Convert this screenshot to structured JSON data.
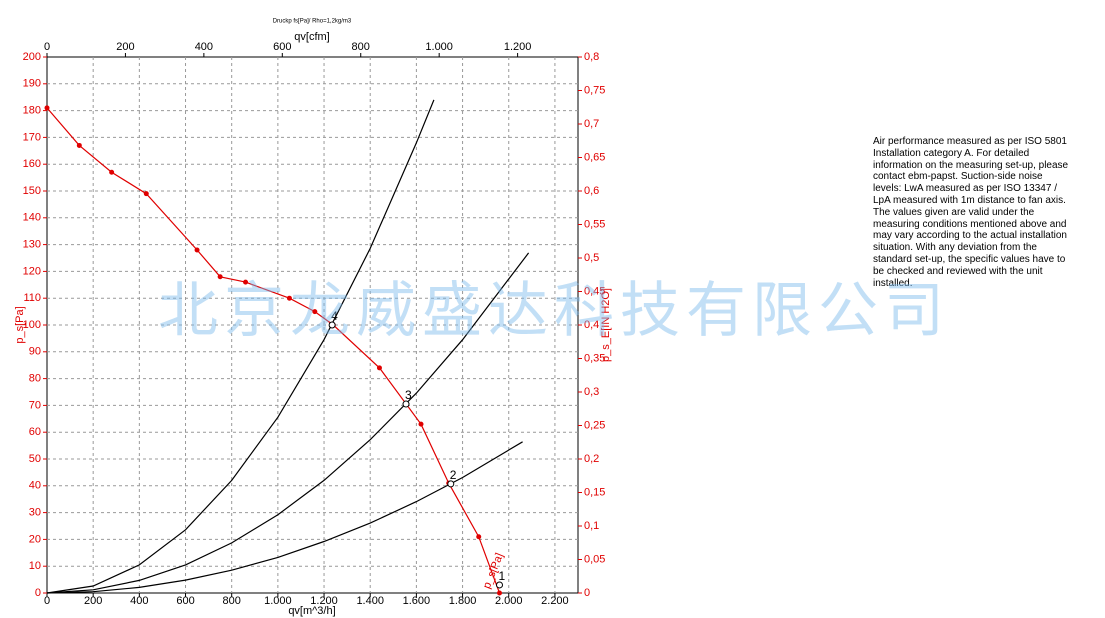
{
  "chart_data": {
    "type": "line",
    "title": "Druckp fs[Pa]/ Rho=1,2kg/m3",
    "x_label": "qv[m^3/h]",
    "x2_label": "qv[cfm]",
    "y_label": "p_s[Pa]",
    "y2_label": "p_s_E[IN H2O]",
    "xlim": [
      0,
      2300
    ],
    "xticks": [
      0,
      200,
      400,
      600,
      800,
      {
        "value": 1000,
        "label": "1.000"
      },
      {
        "value": 1200,
        "label": "1.200"
      },
      {
        "value": 1400,
        "label": "1.400"
      },
      {
        "value": 1600,
        "label": "1.600"
      },
      {
        "value": 1800,
        "label": "1.800"
      },
      {
        "value": 2000,
        "label": "2.000"
      },
      {
        "value": 2200,
        "label": "2.200"
      }
    ],
    "x2lim": [
      0,
      1354
    ],
    "x2ticks": [
      0,
      200,
      400,
      600,
      800,
      {
        "value": 1000,
        "label": "1.000"
      },
      {
        "value": 1200,
        "label": "1.200"
      }
    ],
    "ylim": [
      0,
      200
    ],
    "yticks": [
      0,
      10,
      20,
      30,
      40,
      50,
      60,
      70,
      80,
      90,
      100,
      110,
      120,
      130,
      140,
      150,
      160,
      170,
      180,
      190,
      200
    ],
    "y2lim": [
      0,
      0.8
    ],
    "y2ticks": [
      0,
      {
        "value": 0.05,
        "label": "0,05"
      },
      {
        "value": 0.1,
        "label": "0,1"
      },
      {
        "value": 0.15,
        "label": "0,15"
      },
      {
        "value": 0.2,
        "label": "0,2"
      },
      {
        "value": 0.25,
        "label": "0,25"
      },
      {
        "value": 0.3,
        "label": "0,3"
      },
      {
        "value": 0.35,
        "label": "0,35"
      },
      {
        "value": 0.4,
        "label": "0,4"
      },
      {
        "value": 0.45,
        "label": "0,45"
      },
      {
        "value": 0.5,
        "label": "0,5"
      },
      {
        "value": 0.55,
        "label": "0,55"
      },
      {
        "value": 0.6,
        "label": "0,6"
      },
      {
        "value": 0.65,
        "label": "0,65"
      },
      {
        "value": 0.7,
        "label": "0,7"
      },
      {
        "value": 0.75,
        "label": "0,75"
      },
      {
        "value": 0.8,
        "label": "0,8"
      }
    ],
    "grid": true,
    "series": [
      {
        "name": "p_s[Pa]",
        "color": "#e00000",
        "markers": true,
        "x": [
          0,
          140,
          280,
          430,
          650,
          750,
          860,
          1050,
          1160,
          1240,
          1440,
          1620,
          1740,
          1870,
          1960
        ],
        "values": [
          181,
          167,
          157,
          149,
          128,
          118,
          116,
          110,
          105,
          100,
          84,
          63,
          41,
          21,
          0
        ]
      },
      {
        "color": "#000000",
        "markers": false,
        "x": [
          0,
          200,
          400,
          600,
          800,
          1000,
          1200,
          1400,
          1600,
          1676
        ],
        "values": [
          0,
          2.6,
          10.5,
          23.6,
          42,
          65.6,
          94.5,
          128.6,
          168,
          184
        ]
      },
      {
        "color": "#000000",
        "markers": false,
        "x": [
          0,
          200,
          400,
          600,
          800,
          1000,
          1200,
          1400,
          1600,
          1800,
          2086
        ],
        "values": [
          0,
          1.2,
          4.7,
          10.5,
          18.7,
          29.2,
          42,
          57.2,
          74.6,
          94.5,
          126.9
        ]
      },
      {
        "color": "#000000",
        "markers": false,
        "x": [
          0,
          200,
          400,
          600,
          800,
          1000,
          1200,
          1400,
          1600,
          1800,
          2060
        ],
        "values": [
          0,
          0.5,
          2.1,
          4.8,
          8.5,
          13.3,
          19.2,
          26.1,
          34.1,
          43.1,
          56.4
        ]
      }
    ],
    "operating_points": [
      {
        "label": "1",
        "x": 1960,
        "y": 3
      },
      {
        "label": "2",
        "x": 1749,
        "y": 40.7
      },
      {
        "label": "3",
        "x": 1555,
        "y": 70.5
      },
      {
        "label": "4",
        "x": 1235,
        "y": 100
      }
    ]
  },
  "note": [
    "Air performance measured as per ISO 5801",
    "Installation category A. For detailed",
    "information on the measuring set-up, please",
    "contact ebm-papst. Suction-side noise",
    "levels: LwA measured as per ISO 13347 /",
    "LpA measured with 1m distance to fan axis.",
    "The values given are valid under the",
    "measuring conditions mentioned above and",
    "may vary according to the actual installation",
    "situation. With any deviation from the",
    "standard set-up, the specific values have to",
    "be checked and reviewed with the unit",
    "installed."
  ],
  "watermark": "北京龙威盛达科技有限公司"
}
